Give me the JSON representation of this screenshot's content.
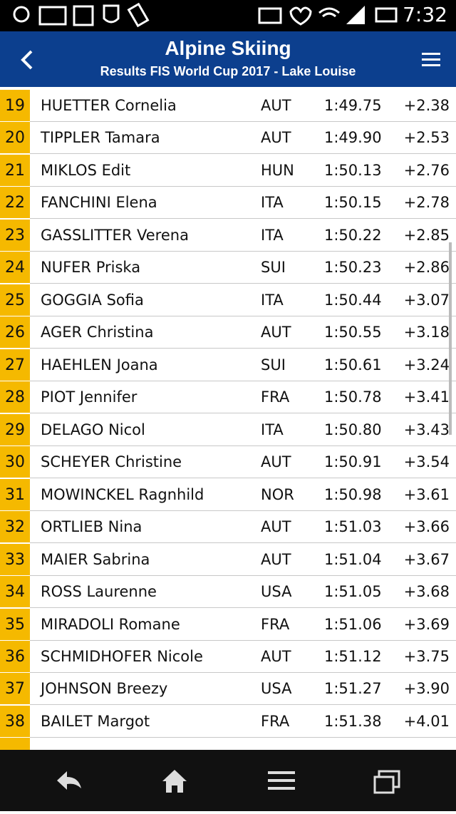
{
  "status_bar": {
    "time": "7:32"
  },
  "header": {
    "title": "Alpine Skiing",
    "subtitle": "Results FIS World Cup 2017 - Lake Louise"
  },
  "table": {
    "rows": [
      [
        "19",
        "HUETTER Cornelia",
        "AUT",
        "1:49.75",
        "+2.38"
      ],
      [
        "20",
        "TIPPLER Tamara",
        "AUT",
        "1:49.90",
        "+2.53"
      ],
      [
        "21",
        "MIKLOS Edit",
        "HUN",
        "1:50.13",
        "+2.76"
      ],
      [
        "22",
        "FANCHINI Elena",
        "ITA",
        "1:50.15",
        "+2.78"
      ],
      [
        "23",
        "GASSLITTER Verena",
        "ITA",
        "1:50.22",
        "+2.85"
      ],
      [
        "24",
        "NUFER Priska",
        "SUI",
        "1:50.23",
        "+2.86"
      ],
      [
        "25",
        "GOGGIA Sofia",
        "ITA",
        "1:50.44",
        "+3.07"
      ],
      [
        "26",
        "AGER Christina",
        "AUT",
        "1:50.55",
        "+3.18"
      ],
      [
        "27",
        "HAEHLEN Joana",
        "SUI",
        "1:50.61",
        "+3.24"
      ],
      [
        "28",
        "PIOT Jennifer",
        "FRA",
        "1:50.78",
        "+3.41"
      ],
      [
        "29",
        "DELAGO Nicol",
        "ITA",
        "1:50.80",
        "+3.43"
      ],
      [
        "30",
        "SCHEYER Christine",
        "AUT",
        "1:50.91",
        "+3.54"
      ],
      [
        "31",
        "MOWINCKEL Ragnhild",
        "NOR",
        "1:50.98",
        "+3.61"
      ],
      [
        "32",
        "ORTLIEB Nina",
        "AUT",
        "1:51.03",
        "+3.66"
      ],
      [
        "33",
        "MAIER Sabrina",
        "AUT",
        "1:51.04",
        "+3.67"
      ],
      [
        "34",
        "ROSS Laurenne",
        "USA",
        "1:51.05",
        "+3.68"
      ],
      [
        "35",
        "MIRADOLI Romane",
        "FRA",
        "1:51.06",
        "+3.69"
      ],
      [
        "36",
        "SCHMIDHOFER Nicole",
        "AUT",
        "1:51.12",
        "+3.75"
      ],
      [
        "37",
        "JOHNSON Breezy",
        "USA",
        "1:51.27",
        "+3.90"
      ],
      [
        "38",
        "BAILET Margot",
        "FRA",
        "1:51.38",
        "+4.01"
      ]
    ]
  }
}
